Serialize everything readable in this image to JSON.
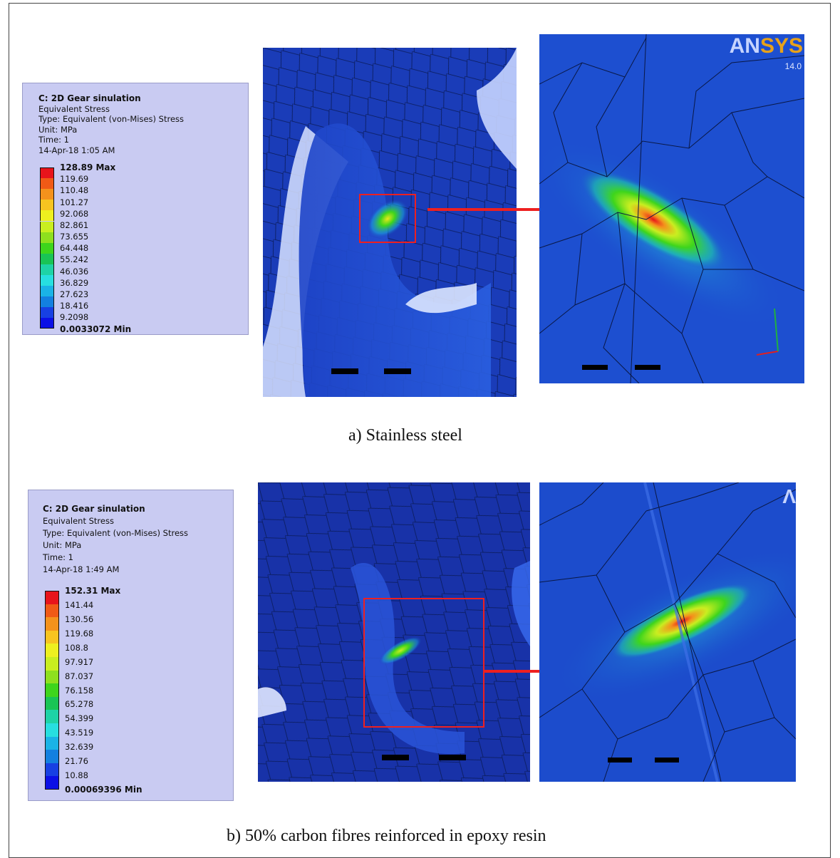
{
  "figure_a": {
    "legend": {
      "title": "C: 2D Gear sinulation",
      "result": "Equivalent Stress",
      "type": "Type: Equivalent (von-Mises) Stress",
      "unit": "Unit: MPa",
      "time": "Time: 1",
      "date": "14-Apr-18 1:05 AM",
      "labels": [
        "128.89 Max",
        "119.69",
        "110.48",
        "101.27",
        "92.068",
        "82.861",
        "73.655",
        "64.448",
        "55.242",
        "46.036",
        "36.829",
        "27.623",
        "18.416",
        "9.2098",
        "0.0033072 Min"
      ]
    },
    "brand": "ANSYS",
    "brand_prefix": "AN",
    "brand_suffix": "SYS",
    "version": "14.0",
    "caption": "a)   Stainless steel"
  },
  "figure_b": {
    "legend": {
      "title": "C: 2D Gear sinulation",
      "result": "Equivalent Stress",
      "type": "Type: Equivalent (von-Mises) Stress",
      "unit": "Unit: MPa",
      "time": "Time: 1",
      "date": "14-Apr-18 1:49 AM",
      "labels": [
        "152.31 Max",
        "141.44",
        "130.56",
        "119.68",
        "108.8",
        "97.917",
        "87.037",
        "76.158",
        "65.278",
        "54.399",
        "43.519",
        "32.639",
        "21.76",
        "10.88",
        "0.00069396 Min"
      ]
    },
    "brand_fragment": "Λ",
    "caption": "b)   50% carbon fibres reinforced in epoxy resin"
  },
  "colors": {
    "scale": [
      "#e8141b",
      "#f05a16",
      "#f4921c",
      "#f7c420",
      "#eef01f",
      "#c9ee20",
      "#8ee01e",
      "#3ed51c",
      "#19c455",
      "#1ed3a6",
      "#27dfe0",
      "#1ab3e6",
      "#1380e0",
      "#1740e3",
      "#0b10e6"
    ],
    "legend_bg": "#c9cbf2",
    "model_blue": "#1737b3",
    "highlight_box": "#ee2020",
    "arrow": "#ee2020"
  }
}
